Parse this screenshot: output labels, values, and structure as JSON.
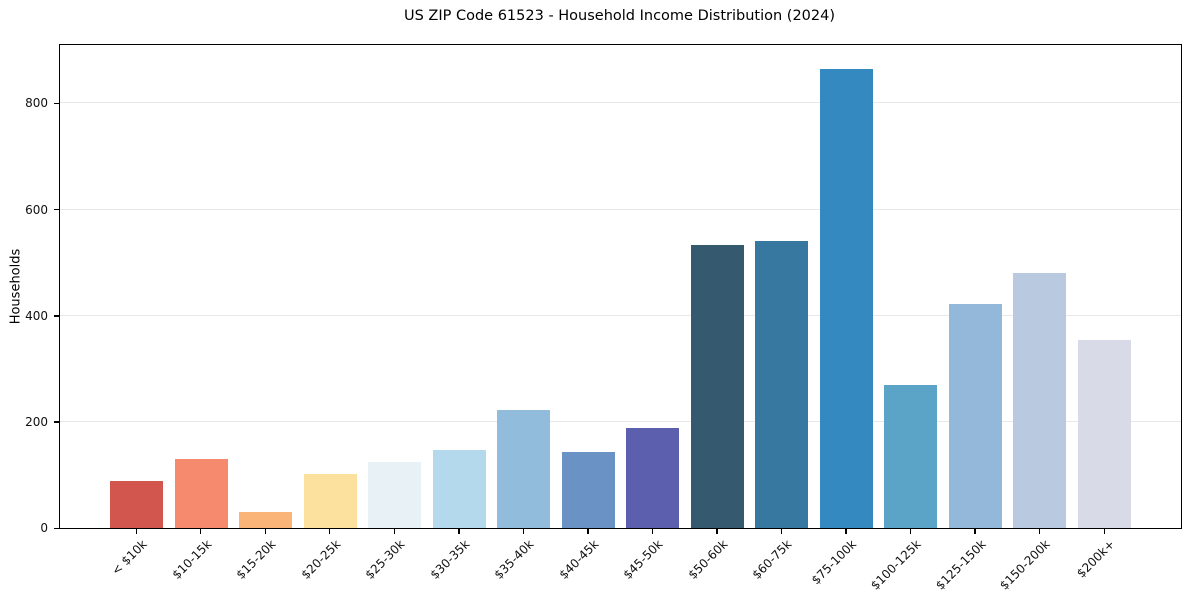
{
  "chart_data": {
    "type": "bar",
    "title": "US ZIP Code 61523 - Household Income Distribution (2024)",
    "xlabel": "",
    "ylabel": "Households",
    "categories": [
      "< $10k",
      "$10-15k",
      "$15-20k",
      "$20-25k",
      "$25-30k",
      "$30-35k",
      "$35-40k",
      "$40-45k",
      "$45-50k",
      "$50-60k",
      "$60-75k",
      "$75-100k",
      "$100-125k",
      "$125-150k",
      "$150-200k",
      "$200k+"
    ],
    "values": [
      88,
      130,
      31,
      102,
      124,
      147,
      222,
      144,
      189,
      533,
      540,
      864,
      270,
      422,
      480,
      354
    ],
    "bar_colors": [
      "#d3564e",
      "#f68a6e",
      "#fbb477",
      "#fce09e",
      "#e7f1f6",
      "#b5d9ec",
      "#92bcdc",
      "#6a92c4",
      "#5c5fae",
      "#355a70",
      "#36789f",
      "#3589c1",
      "#5ba4c8",
      "#93b8da",
      "#b9c9e0",
      "#d8dae8"
    ],
    "yticks": [
      0,
      200,
      400,
      600,
      800
    ],
    "ylim": [
      0,
      910
    ],
    "grid": "horizontal",
    "gridline_color": "#e8e8e8",
    "axis_color": "#000000",
    "legend": "none",
    "xtick_rotation_deg": 45
  }
}
